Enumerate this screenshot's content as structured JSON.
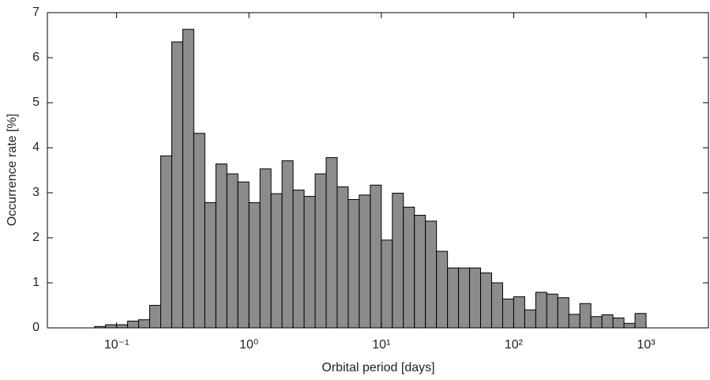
{
  "chart_data": {
    "type": "histogram",
    "xlabel": "Orbital period [days]",
    "ylabel": "Occurrence rate [%]",
    "xscale": "log",
    "color": "#8c8c8c",
    "bins": [
      0.068129,
      0.08254,
      0.1,
      0.12115,
      0.14678,
      0.17783,
      0.21544,
      0.26102,
      0.31623,
      0.38312,
      0.46416,
      0.56234,
      0.68129,
      0.8254,
      1,
      1.2115,
      1.4678,
      1.7783,
      2.1544,
      2.6102,
      3.1623,
      3.8312,
      4.6416,
      5.6234,
      6.8129,
      8.254,
      10,
      12.115,
      14.678,
      17.783,
      21.544,
      26.102,
      31.623,
      38.312,
      46.416,
      56.234,
      68.129,
      82.54,
      100,
      121.15,
      146.78,
      177.83,
      215.44,
      261.02,
      316.23,
      383.12,
      464.16,
      562.34,
      681.29,
      825.4,
      1000
    ],
    "values": [
      0.03,
      0.07,
      0.07,
      0.15,
      0.18,
      0.5,
      3.82,
      6.35,
      6.63,
      4.32,
      2.78,
      3.64,
      3.42,
      3.24,
      2.78,
      3.53,
      2.98,
      3.71,
      3.06,
      2.92,
      3.42,
      3.78,
      3.13,
      2.85,
      2.95,
      3.17,
      1.95,
      2.99,
      2.68,
      2.5,
      2.37,
      1.7,
      1.33,
      1.33,
      1.33,
      1.22,
      1.0,
      0.64,
      0.69,
      0.4,
      0.79,
      0.75,
      0.67,
      0.3,
      0.54,
      0.25,
      0.29,
      0.22,
      0.1,
      0.32
    ],
    "xlim": [
      0.03,
      3000
    ],
    "xticks": [
      {
        "value": 0.1,
        "label": "10⁻¹"
      },
      {
        "value": 1,
        "label": "10⁰"
      },
      {
        "value": 10,
        "label": "10¹"
      },
      {
        "value": 100,
        "label": "10²"
      },
      {
        "value": 1000,
        "label": "10³"
      }
    ],
    "ylim": [
      0,
      7
    ],
    "yticks": [
      0,
      1,
      2,
      3,
      4,
      5,
      6,
      7
    ]
  }
}
